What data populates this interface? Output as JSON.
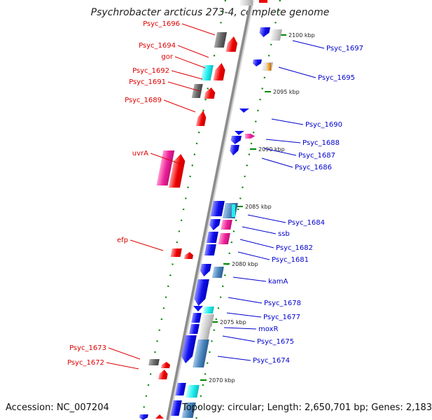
{
  "title": "Psychrobacter arcticus 273-4, complete genome",
  "footer": {
    "accession": "Accession: NC_007204",
    "topology": "Topology: circular; Length: 2,650,701 bp; Genes: 2,183"
  },
  "colors": {
    "left_label": "#dd0000",
    "right_label": "#0000cc",
    "backbone": "#8c8c8c",
    "dots": "#008800"
  },
  "kbp_ticks": [
    "2100 kbp",
    "2095 kbp",
    "2090 kbp",
    "2085 kbp",
    "2080 kbp",
    "2075 kbp",
    "2070 kbp"
  ],
  "left_labels": [
    "Psyc_1696",
    "Psyc_1694",
    "gor",
    "Psyc_1692",
    "Psyc_1691",
    "Psyc_1689",
    "uvrA",
    "efp",
    "Psyc_1673",
    "Psyc_1672"
  ],
  "right_labels": [
    "Psyc_1697",
    "Psyc_1695",
    "Psyc_1690",
    "Psyc_1688",
    "Psyc_1687",
    "Psyc_1686",
    "Psyc_1684",
    "ssb",
    "Psyc_1682",
    "Psyc_1681",
    "kamA",
    "Psyc_1678",
    "Psyc_1677",
    "moxR",
    "Psyc_1675",
    "Psyc_1674"
  ]
}
